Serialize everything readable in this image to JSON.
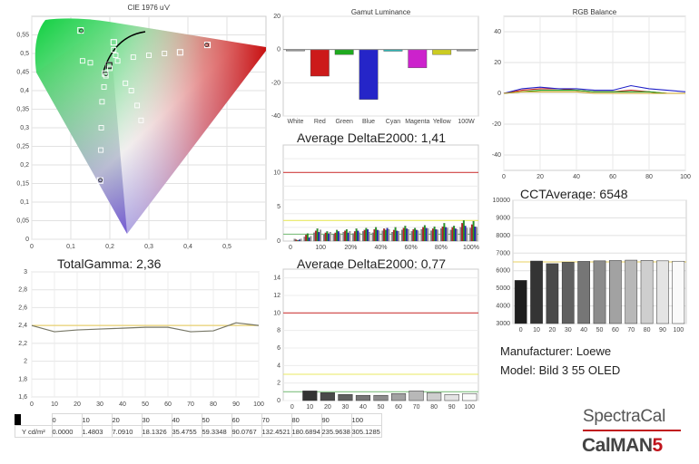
{
  "cie": {
    "title": "CIE 1976 u'v'",
    "xticks": [
      "0",
      "0,1",
      "0,2",
      "0,3",
      "0,4",
      "0,5"
    ],
    "yticks": [
      "0,55",
      "0,5",
      "0,45",
      "0,4",
      "0,35",
      "0,3",
      "0,25",
      "0,2",
      "0,15",
      "0,1",
      "0,05",
      "0"
    ]
  },
  "gamut": {
    "title": "Gamut Luminance",
    "categories": [
      "White",
      "Red",
      "Green",
      "Blue",
      "Cyan",
      "Magenta",
      "Yellow",
      "100W"
    ],
    "yticks": [
      "20",
      "0",
      "-20",
      "-40"
    ]
  },
  "rgb": {
    "title": "RGB Balance",
    "xticks": [
      "0",
      "20",
      "40",
      "60",
      "80",
      "100"
    ],
    "yticks": [
      "40",
      "20",
      "0",
      "-20",
      "-40"
    ]
  },
  "de1": {
    "label": "Average DeltaE2000: 1,41",
    "xticks": [
      "0",
      "100",
      "20%",
      "40%",
      "60%",
      "80%",
      "100%"
    ],
    "yticks": [
      "10",
      "5",
      "0"
    ]
  },
  "cct": {
    "label": "CCTAverage: 6548",
    "yticks": [
      "10000",
      "9000",
      "8000",
      "7000",
      "6000",
      "5000",
      "4000",
      "3000"
    ],
    "xticks": [
      "0",
      "10",
      "20",
      "30",
      "40",
      "50",
      "60",
      "70",
      "80",
      "90",
      "100"
    ]
  },
  "gamma": {
    "label": "TotalGamma: 2,36",
    "yticks": [
      "3",
      "2,8",
      "2,6",
      "2,4",
      "2,2",
      "2",
      "1,8",
      "1,6"
    ],
    "xticks": [
      "0",
      "10",
      "20",
      "30",
      "40",
      "50",
      "60",
      "70",
      "80",
      "90",
      "100"
    ]
  },
  "de2": {
    "label": "Average DeltaE2000: 0,77",
    "yticks": [
      "14",
      "12",
      "10",
      "8",
      "6",
      "4",
      "2",
      "0"
    ],
    "xticks": [
      "0",
      "10",
      "20",
      "30",
      "40",
      "50",
      "60",
      "70",
      "80",
      "90",
      "100"
    ]
  },
  "table": {
    "headers": [
      "0",
      "10",
      "20",
      "30",
      "40",
      "50",
      "60",
      "70",
      "80",
      "90",
      "100"
    ],
    "row_label": "Y cd/m²",
    "values": [
      "0.0000",
      "1.4803",
      "7.0910",
      "18.1326",
      "35.4755",
      "59.3348",
      "90.0767",
      "132.4521",
      "180.6894",
      "235.9638",
      "305.1285"
    ]
  },
  "info": {
    "manufacturer": "Manufacturer: Loewe",
    "model": "Model: Bild 3 55 OLED"
  },
  "logo": {
    "brand1": "SpectraCal",
    "brand2": "CalMAN",
    "version": "5"
  },
  "chart_data": [
    {
      "type": "scatter",
      "title": "CIE 1976 u'v'",
      "xlim": [
        0,
        0.6
      ],
      "ylim": [
        0,
        0.6
      ],
      "white_point": [
        0.198,
        0.468
      ],
      "targets": [
        [
          0.45,
          0.523
        ],
        [
          0.125,
          0.562
        ],
        [
          0.175,
          0.158
        ],
        [
          0.188,
          0.446
        ],
        [
          0.197,
          0.469
        ],
        [
          0.38,
          0.503
        ],
        [
          0.21,
          0.53
        ]
      ],
      "measured": [
        [
          0.448,
          0.523
        ],
        [
          0.127,
          0.561
        ],
        [
          0.176,
          0.159
        ],
        [
          0.19,
          0.445
        ]
      ]
    },
    {
      "type": "bar",
      "title": "Gamut Luminance",
      "categories": [
        "White",
        "Red",
        "Green",
        "Blue",
        "Cyan",
        "Magenta",
        "Yellow",
        "100W"
      ],
      "values": [
        0,
        -16,
        -3,
        -30,
        -1,
        -11,
        -3,
        0
      ],
      "colors": [
        "#999999",
        "#cc1a1a",
        "#1faa1f",
        "#2525c8",
        "#22bbbb",
        "#cc22cc",
        "#cccc22",
        "#999999"
      ],
      "ylim": [
        -40,
        20
      ]
    },
    {
      "type": "line",
      "title": "RGB Balance",
      "x": [
        0,
        10,
        20,
        30,
        40,
        50,
        60,
        70,
        80,
        90,
        100
      ],
      "series": [
        {
          "color": "#c82020",
          "values": [
            0,
            2,
            3,
            3,
            2,
            1,
            1,
            2,
            1,
            0,
            0
          ]
        },
        {
          "color": "#20a020",
          "values": [
            0,
            1,
            2,
            2,
            2,
            1,
            1,
            1,
            1,
            0,
            0
          ]
        },
        {
          "color": "#2020c8",
          "values": [
            0,
            3,
            4,
            3,
            3,
            2,
            2,
            5,
            3,
            2,
            1
          ]
        },
        {
          "color": "#c8a020",
          "values": [
            0,
            1,
            1,
            1,
            1,
            0,
            0,
            0,
            0,
            0,
            0
          ]
        }
      ],
      "ylim": [
        -50,
        50
      ]
    },
    {
      "type": "bar",
      "label": "Average DeltaE2000: 1,41",
      "groups": [
        0,
        1,
        2,
        3,
        4,
        5,
        6,
        7,
        8,
        9,
        10,
        11,
        12,
        13,
        14,
        15,
        16,
        17,
        18,
        19
      ],
      "values": [
        [
          0,
          0,
          0,
          0,
          0
        ],
        [
          0.3,
          0.2,
          0.1,
          0.2,
          0.3
        ],
        [
          0.6,
          0.9,
          1.1,
          0.5,
          0.7
        ],
        [
          1.2,
          1.5,
          1.8,
          1.3,
          1.6
        ],
        [
          0.9,
          1.2,
          1.4,
          1.1,
          1.3
        ],
        [
          1.0,
          1.2,
          1.6,
          1.4,
          1.1
        ],
        [
          1.3,
          1.5,
          1.7,
          1.2,
          1.4
        ],
        [
          1.1,
          1.4,
          1.8,
          1.5,
          1.2
        ],
        [
          1.4,
          1.6,
          1.9,
          1.7,
          1.3
        ],
        [
          1.2,
          1.7,
          2.0,
          1.6,
          1.5
        ],
        [
          1.5,
          1.8,
          1.6,
          1.9,
          1.7
        ],
        [
          1.3,
          1.6,
          2.0,
          1.5,
          1.4
        ],
        [
          1.6,
          1.9,
          2.2,
          1.8,
          1.7
        ],
        [
          1.4,
          1.7,
          1.9,
          1.6,
          1.5
        ],
        [
          1.7,
          2.0,
          2.3,
          1.9,
          1.8
        ],
        [
          1.5,
          1.8,
          2.1,
          1.7,
          1.6
        ],
        [
          1.8,
          2.1,
          2.6,
          2.0,
          1.9
        ],
        [
          1.6,
          2.0,
          2.2,
          1.8,
          1.7
        ],
        [
          2.0,
          2.6,
          3.0,
          2.2,
          1.9
        ],
        [
          1.9,
          2.4,
          2.9,
          2.1,
          2.0
        ]
      ],
      "colors": [
        "#888888",
        "#c82020",
        "#20a020",
        "#2020c8",
        "#aaaaaa"
      ],
      "ylim": [
        0,
        14
      ],
      "thresholds": [
        {
          "y": 10,
          "color": "#d04040"
        },
        {
          "y": 3,
          "color": "#e8e860"
        },
        {
          "y": 1,
          "color": "#80c080"
        }
      ]
    },
    {
      "type": "bar",
      "label": "CCTAverage: 6548",
      "categories": [
        "0",
        "10",
        "20",
        "30",
        "40",
        "50",
        "60",
        "70",
        "80",
        "90",
        "100"
      ],
      "values": [
        5450,
        6550,
        6400,
        6480,
        6530,
        6560,
        6580,
        6600,
        6590,
        6560,
        6540
      ],
      "target": 6500,
      "ylim": [
        3000,
        10000
      ]
    },
    {
      "type": "line",
      "label": "TotalGamma: 2,36",
      "x": [
        0,
        10,
        20,
        30,
        40,
        50,
        60,
        70,
        80,
        90,
        100
      ],
      "series": [
        {
          "color": "#777766",
          "values": [
            2.4,
            2.33,
            2.35,
            2.36,
            2.37,
            2.38,
            2.38,
            2.33,
            2.34,
            2.43,
            2.4
          ]
        }
      ],
      "target": 2.4,
      "ylim": [
        1.6,
        3.0
      ]
    },
    {
      "type": "bar",
      "label": "Average DeltaE2000: 0,77",
      "categories": [
        "0",
        "10",
        "20",
        "30",
        "40",
        "50",
        "60",
        "70",
        "80",
        "90",
        "100"
      ],
      "values": [
        0.0,
        1.1,
        0.9,
        0.7,
        0.6,
        0.6,
        0.8,
        1.1,
        0.9,
        0.7,
        0.8
      ],
      "ylim": [
        0,
        15
      ],
      "thresholds": [
        {
          "y": 10,
          "color": "#d04040"
        },
        {
          "y": 3,
          "color": "#e8e860"
        },
        {
          "y": 1,
          "color": "#80c080"
        }
      ]
    }
  ]
}
